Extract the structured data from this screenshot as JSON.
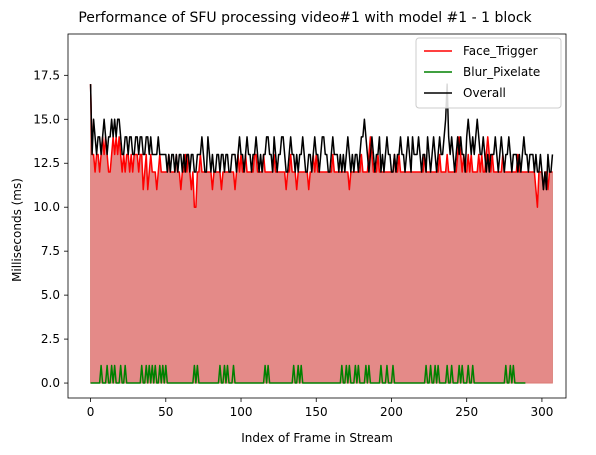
{
  "chart_data": {
    "type": "line",
    "title": "Performance of SFU processing video#1 with model #1 - 1 block",
    "xlabel": "Index of Frame in Stream",
    "ylabel": "Milliseconds (ms)",
    "xlim": [
      -15,
      316
    ],
    "ylim": [
      -0.85,
      19.85
    ],
    "x_ticks": [
      0,
      50,
      100,
      150,
      200,
      250,
      300
    ],
    "y_ticks": [
      0.0,
      2.5,
      5.0,
      7.5,
      10.0,
      12.5,
      15.0,
      17.5
    ],
    "x_tick_labels": [
      "0",
      "50",
      "100",
      "150",
      "200",
      "250",
      "300"
    ],
    "y_tick_labels": [
      "0.0",
      "2.5",
      "5.0",
      "7.5",
      "10.0",
      "12.5",
      "15.0",
      "17.5"
    ],
    "legend_position": "top-right",
    "fill_color": "#e48a88",
    "series": [
      {
        "name": "Face_Trigger",
        "color": "#ff0000",
        "values": [
          17,
          13,
          13,
          12,
          13,
          13,
          12,
          13,
          14,
          13,
          14,
          13,
          12,
          12,
          13,
          14,
          13,
          14,
          13,
          14,
          13,
          12,
          13,
          12,
          13,
          13,
          12,
          13,
          12,
          13,
          13,
          13,
          12,
          13,
          13,
          11,
          12,
          13,
          11,
          12,
          13,
          12,
          12,
          12,
          11,
          12,
          13,
          12,
          12,
          12,
          12,
          12,
          13,
          12,
          12,
          12,
          12,
          13,
          12,
          12,
          11,
          12,
          12,
          13,
          12,
          13,
          12,
          11,
          12,
          10,
          10,
          12,
          12,
          13,
          12,
          12,
          12,
          12,
          12,
          12,
          12,
          11,
          12,
          12,
          12,
          12,
          12,
          11,
          12,
          12,
          12,
          12,
          12,
          12,
          12,
          12,
          11,
          12,
          13,
          12,
          13,
          12,
          12,
          13,
          12,
          12,
          12,
          12,
          12,
          13,
          13,
          12,
          12,
          12,
          12,
          13,
          12,
          12,
          12,
          12,
          12,
          12,
          13,
          12,
          12,
          12,
          12,
          12,
          12,
          12,
          11,
          12,
          12,
          13,
          12,
          12,
          12,
          11,
          12,
          12,
          12,
          12,
          12,
          12,
          12,
          11,
          12,
          12,
          13,
          12,
          13,
          12,
          12,
          12,
          12,
          12,
          12,
          12,
          12,
          12,
          12,
          13,
          12,
          12,
          12,
          12,
          12,
          12,
          12,
          12,
          12,
          12,
          11,
          12,
          12,
          12,
          12,
          12,
          12,
          12,
          13,
          12,
          12,
          12,
          12,
          13,
          14,
          13,
          12,
          12,
          12,
          13,
          12,
          12,
          12,
          12,
          12,
          12,
          12,
          12,
          12,
          12,
          13,
          12,
          12,
          13,
          12,
          12,
          12,
          12,
          12,
          12,
          12,
          12,
          12,
          12,
          12,
          12,
          12,
          12,
          12,
          12,
          13,
          12,
          12,
          12,
          12,
          12,
          12,
          12,
          12,
          12,
          13,
          12,
          12,
          12,
          12,
          13,
          12,
          12,
          12,
          12,
          12,
          12,
          13,
          14,
          13,
          12,
          13,
          12,
          12,
          13,
          12,
          13,
          12,
          12,
          12,
          12,
          13,
          12,
          13,
          12,
          12,
          13,
          14,
          13,
          12,
          13,
          12,
          12,
          12,
          12,
          12,
          12,
          13,
          12,
          12,
          12,
          12,
          12,
          12,
          12,
          12,
          12,
          13,
          12,
          12,
          12,
          12,
          12,
          12,
          12,
          12,
          12,
          12,
          12,
          11,
          10,
          12,
          12,
          12,
          11,
          12,
          12,
          11,
          12,
          12,
          12
        ],
        "x_start": 0
      },
      {
        "name": "Blur_Pixelate",
        "color": "#008000",
        "values": [
          0,
          0,
          0,
          0,
          0,
          0,
          0,
          1,
          0,
          0,
          0,
          1,
          0,
          0,
          1,
          0,
          1,
          0,
          0,
          0,
          1,
          0,
          0,
          1,
          0,
          0,
          0,
          0,
          0,
          0,
          0,
          0,
          0,
          0,
          1,
          0,
          0,
          1,
          0,
          1,
          0,
          1,
          0,
          1,
          0,
          0,
          1,
          0,
          1,
          0,
          1,
          0,
          0,
          0,
          0,
          0,
          0,
          0,
          0,
          0,
          0,
          0,
          0,
          0,
          0,
          0,
          0,
          0,
          0,
          1,
          0,
          1,
          0,
          0,
          0,
          0,
          0,
          0,
          0,
          0,
          0,
          0,
          0,
          0,
          0,
          0,
          1,
          0,
          0,
          1,
          0,
          1,
          0,
          0,
          0,
          1,
          0,
          0,
          0,
          0,
          0,
          0,
          0,
          0,
          0,
          0,
          0,
          0,
          0,
          0,
          0,
          0,
          0,
          0,
          0,
          0,
          1,
          0,
          1,
          0,
          0,
          0,
          0,
          0,
          0,
          0,
          0,
          0,
          0,
          0,
          0,
          0,
          0,
          0,
          0,
          1,
          0,
          0,
          1,
          0,
          1,
          0,
          0,
          0,
          0,
          0,
          0,
          0,
          0,
          0,
          0,
          0,
          0,
          0,
          0,
          0,
          0,
          0,
          0,
          0,
          0,
          0,
          0,
          0,
          0,
          0,
          0,
          1,
          0,
          0,
          1,
          0,
          1,
          0,
          0,
          0,
          1,
          0,
          1,
          0,
          0,
          0,
          0,
          1,
          0,
          1,
          0,
          0,
          0,
          0,
          0,
          0,
          0,
          1,
          0,
          0,
          0,
          1,
          0,
          0,
          0,
          1,
          0,
          0,
          0,
          0,
          0,
          0,
          0,
          0,
          0,
          0,
          0,
          0,
          0,
          0,
          0,
          0,
          0,
          0,
          0,
          0,
          0,
          1,
          0,
          0,
          1,
          0,
          0,
          1,
          0,
          1,
          0,
          0,
          0,
          0,
          0,
          1,
          0,
          0,
          1,
          0,
          0,
          0,
          0,
          1,
          0,
          1,
          0,
          0,
          0,
          1,
          0,
          0,
          1,
          0,
          0,
          0,
          0,
          0,
          0,
          0,
          0,
          0,
          0,
          0,
          0,
          0,
          0,
          0,
          0,
          0,
          0,
          0,
          0,
          0,
          1,
          0,
          0,
          1,
          0,
          1,
          0,
          0,
          0,
          0,
          0,
          0,
          0,
          0
        ],
        "x_start": 0
      },
      {
        "name": "Overall",
        "color": "#000000",
        "values": [
          17,
          13,
          15,
          14,
          13,
          14,
          14,
          13,
          14,
          15,
          14,
          13,
          14,
          14,
          15,
          14,
          15,
          14,
          15,
          15,
          14,
          13,
          13,
          14,
          14,
          13,
          14,
          14,
          13,
          13,
          14,
          14,
          13,
          14,
          14,
          13,
          13,
          14,
          14,
          13,
          14,
          13,
          13,
          13,
          13,
          14,
          13,
          13,
          13,
          13,
          13,
          12,
          13,
          12,
          13,
          13,
          12,
          13,
          12,
          13,
          13,
          12,
          13,
          12,
          13,
          13,
          12,
          13,
          13,
          12,
          12,
          13,
          13,
          13,
          14,
          13,
          12,
          12,
          14,
          13,
          12,
          13,
          12,
          12,
          13,
          13,
          12,
          13,
          13,
          12,
          13,
          13,
          12,
          12,
          13,
          13,
          13,
          12,
          13,
          14,
          13,
          13,
          12,
          13,
          14,
          13,
          13,
          12,
          13,
          13,
          14,
          13,
          12,
          13,
          12,
          13,
          13,
          14,
          14,
          13,
          13,
          12,
          14,
          13,
          12,
          13,
          13,
          14,
          14,
          13,
          12,
          12,
          13,
          14,
          13,
          13,
          12,
          13,
          12,
          13,
          13,
          14,
          13,
          12,
          12,
          13,
          13,
          12,
          13,
          14,
          13,
          13,
          12,
          13,
          14,
          14,
          13,
          13,
          12,
          12,
          13,
          14,
          13,
          13,
          13,
          12,
          13,
          12,
          13,
          12,
          13,
          14,
          13,
          12,
          13,
          12,
          13,
          13,
          12,
          13,
          14,
          14,
          15,
          14,
          13,
          12,
          13,
          14,
          13,
          12,
          13,
          13,
          14,
          12,
          13,
          12,
          13,
          14,
          13,
          13,
          12,
          12,
          13,
          12,
          13,
          13,
          14,
          13,
          13,
          12,
          13,
          14,
          13,
          12,
          14,
          13,
          13,
          13,
          14,
          13,
          12,
          13,
          13,
          12,
          14,
          13,
          12,
          13,
          14,
          13,
          12,
          13,
          14,
          13,
          13,
          14,
          15,
          17,
          14,
          13,
          14,
          13,
          12,
          13,
          14,
          13,
          14,
          13,
          13,
          12,
          14,
          15,
          14,
          13,
          14,
          13,
          14,
          15,
          14,
          13,
          13,
          14,
          13,
          12,
          13,
          12,
          13,
          13,
          13,
          14,
          13,
          12,
          13,
          14,
          13,
          12,
          13,
          13,
          14,
          13,
          12,
          13,
          13,
          13,
          12,
          13,
          12,
          13,
          14,
          13,
          13,
          12,
          13,
          13,
          13,
          12,
          13,
          12,
          12,
          13,
          12,
          11,
          12,
          11,
          13,
          12,
          12,
          13
        ]
      }
    ]
  }
}
